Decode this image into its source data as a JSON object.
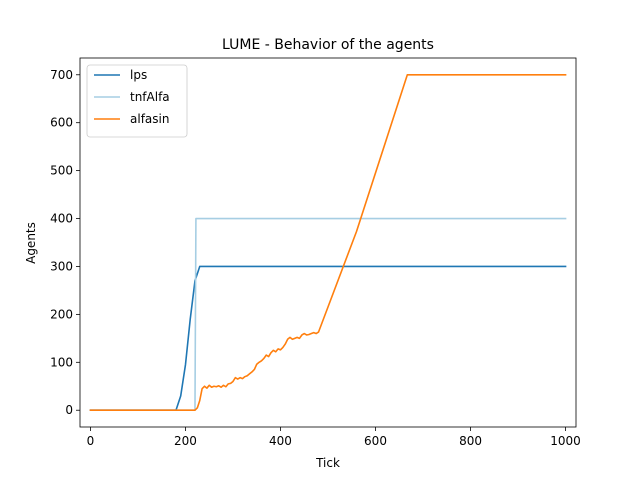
{
  "chart_data": {
    "type": "line",
    "title": "LUME - Behavior of the agents",
    "xlabel": "Tick",
    "ylabel": "Agents",
    "xlim": [
      -22,
      1022
    ],
    "ylim": [
      -35,
      735
    ],
    "xticks": [
      0,
      200,
      400,
      600,
      800,
      1000
    ],
    "yticks": [
      0,
      100,
      200,
      300,
      400,
      500,
      600,
      700
    ],
    "grid": false,
    "legend_position": "top-left",
    "series": [
      {
        "name": "lps",
        "color": "#1f77b4",
        "points": [
          [
            0,
            0
          ],
          [
            180,
            0
          ],
          [
            190,
            30
          ],
          [
            200,
            95
          ],
          [
            210,
            190
          ],
          [
            220,
            270
          ],
          [
            230,
            300
          ],
          [
            1000,
            300
          ]
        ]
      },
      {
        "name": "tnfAlfa",
        "color": "#a6cee3",
        "points": [
          [
            0,
            0
          ],
          [
            220,
            0
          ],
          [
            222,
            400
          ],
          [
            1000,
            400
          ]
        ]
      },
      {
        "name": "alfasin",
        "color": "#ff7f0e",
        "points": [
          [
            0,
            0
          ],
          [
            220,
            0
          ],
          [
            225,
            5
          ],
          [
            230,
            20
          ],
          [
            235,
            45
          ],
          [
            240,
            50
          ],
          [
            245,
            46
          ],
          [
            250,
            52
          ],
          [
            255,
            48
          ],
          [
            260,
            50
          ],
          [
            265,
            49
          ],
          [
            270,
            51
          ],
          [
            275,
            48
          ],
          [
            280,
            52
          ],
          [
            285,
            49
          ],
          [
            290,
            55
          ],
          [
            295,
            56
          ],
          [
            300,
            60
          ],
          [
            305,
            68
          ],
          [
            310,
            65
          ],
          [
            315,
            68
          ],
          [
            320,
            66
          ],
          [
            325,
            70
          ],
          [
            330,
            72
          ],
          [
            335,
            76
          ],
          [
            340,
            80
          ],
          [
            345,
            85
          ],
          [
            350,
            96
          ],
          [
            355,
            100
          ],
          [
            360,
            103
          ],
          [
            365,
            108
          ],
          [
            370,
            115
          ],
          [
            375,
            112
          ],
          [
            380,
            120
          ],
          [
            385,
            125
          ],
          [
            390,
            122
          ],
          [
            395,
            128
          ],
          [
            400,
            126
          ],
          [
            405,
            131
          ],
          [
            410,
            138
          ],
          [
            415,
            148
          ],
          [
            420,
            152
          ],
          [
            425,
            148
          ],
          [
            430,
            150
          ],
          [
            435,
            152
          ],
          [
            440,
            150
          ],
          [
            445,
            157
          ],
          [
            450,
            160
          ],
          [
            455,
            157
          ],
          [
            460,
            158
          ],
          [
            465,
            160
          ],
          [
            470,
            162
          ],
          [
            475,
            160
          ],
          [
            480,
            163
          ],
          [
            560,
            373
          ],
          [
            667,
            700
          ],
          [
            1000,
            700
          ]
        ]
      }
    ]
  }
}
